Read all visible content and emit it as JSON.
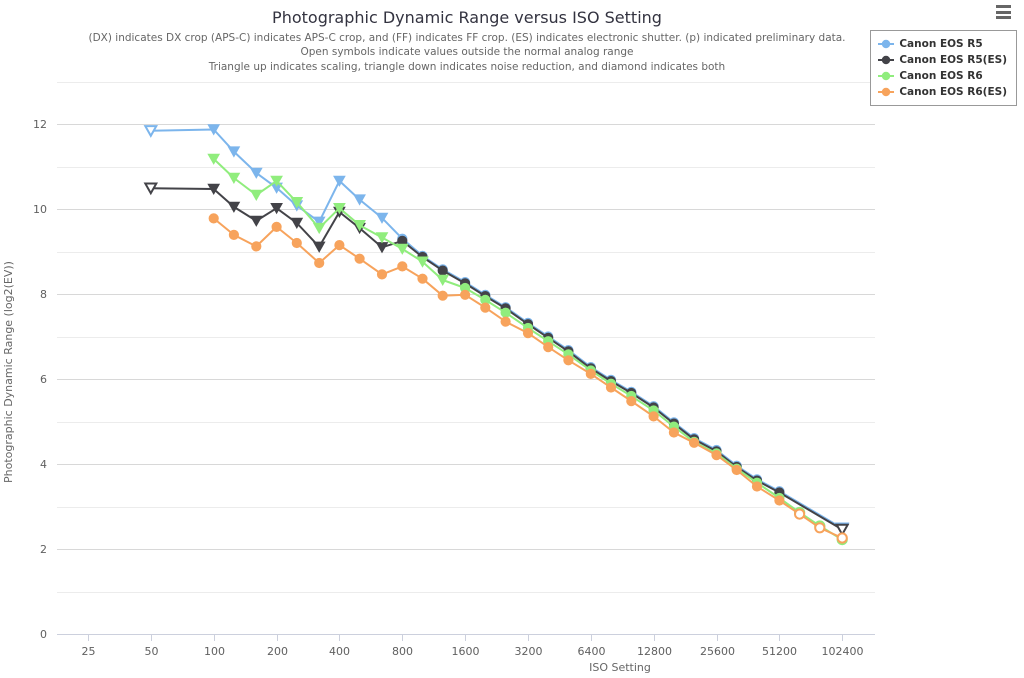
{
  "header": {
    "title": "Photographic Dynamic Range versus ISO Setting",
    "subtitle_lines": [
      "(DX) indicates DX crop (APS-C) indicates APS-C crop, and (FF) indicates FF crop. (ES) indicates electronic shutter. (p) indicated preliminary data.",
      "Open symbols indicate values outside the normal analog range",
      "Triangle up indicates scaling, triangle down indicates noise reduction, and diamond indicates both"
    ]
  },
  "menu": {
    "icon": "hamburger-menu-icon"
  },
  "legend": {
    "position": "top-right",
    "items": [
      {
        "label": "Canon EOS R5",
        "color": "#7cb5ec"
      },
      {
        "label": "Canon EOS R5(ES)",
        "color": "#434348"
      },
      {
        "label": "Canon EOS R6",
        "color": "#90ed7d"
      },
      {
        "label": "Canon EOS R6(ES)",
        "color": "#f7a35c"
      }
    ]
  },
  "axes": {
    "x": {
      "title": "ISO Setting",
      "type": "log2",
      "ticks": [
        25,
        50,
        100,
        200,
        400,
        800,
        1600,
        3200,
        6400,
        12800,
        25600,
        51200,
        102400
      ]
    },
    "y": {
      "title": "Photographic Dynamic Range (log2(EV))",
      "min": 0,
      "max": 13,
      "labeled_ticks": [
        0,
        2,
        4,
        6,
        8,
        10,
        12
      ],
      "minor_grid_step": 1
    }
  },
  "chart_data": {
    "type": "line",
    "title": "Photographic Dynamic Range versus ISO Setting",
    "xlabel": "ISO Setting",
    "ylabel": "Photographic Dynamic Range (log2(EV))",
    "x_scale": "log2",
    "xlim": [
      17.8,
      145000
    ],
    "ylim": [
      0,
      13
    ],
    "grid": true,
    "legend_position": "top-right",
    "point_format": [
      "iso",
      "pdr",
      "marker: t=triangle-down c=circle",
      "open: 1=open symbol 0=filled"
    ],
    "series": [
      {
        "name": "Canon EOS R5",
        "color": "#7cb5ec",
        "points": [
          [
            50,
            11.84,
            "t",
            1
          ],
          [
            100,
            11.87,
            "t",
            0
          ],
          [
            125,
            11.35,
            "t",
            0
          ],
          [
            160,
            10.85,
            "t",
            0
          ],
          [
            200,
            10.5,
            "t",
            0
          ],
          [
            250,
            10.08,
            "t",
            0
          ],
          [
            320,
            9.7,
            "t",
            0
          ],
          [
            400,
            10.66,
            "t",
            0
          ],
          [
            500,
            10.22,
            "t",
            0
          ],
          [
            640,
            9.79,
            "t",
            0
          ],
          [
            800,
            9.3,
            "c",
            0
          ],
          [
            1000,
            8.9,
            "c",
            0
          ],
          [
            1250,
            8.58,
            "c",
            0
          ],
          [
            1600,
            8.28,
            "c",
            0
          ],
          [
            2000,
            7.98,
            "c",
            0
          ],
          [
            2500,
            7.69,
            "c",
            0
          ],
          [
            3200,
            7.32,
            "c",
            0
          ],
          [
            4000,
            7.0,
            "c",
            0
          ],
          [
            5000,
            6.68,
            "c",
            0
          ],
          [
            6400,
            6.28,
            "c",
            0
          ],
          [
            8000,
            5.98,
            "c",
            0
          ],
          [
            10000,
            5.7,
            "c",
            0
          ],
          [
            12800,
            5.36,
            "c",
            0
          ],
          [
            16000,
            4.98,
            "c",
            0
          ],
          [
            20000,
            4.61,
            "c",
            0
          ],
          [
            25600,
            4.33,
            "c",
            0
          ],
          [
            32000,
            3.96,
            "c",
            0
          ],
          [
            40000,
            3.64,
            "c",
            0
          ],
          [
            51200,
            3.36,
            "c",
            0
          ],
          [
            102400,
            2.49,
            "t",
            1
          ]
        ]
      },
      {
        "name": "Canon EOS R5(ES)",
        "color": "#434348",
        "points": [
          [
            50,
            10.49,
            "t",
            1
          ],
          [
            100,
            10.47,
            "t",
            0
          ],
          [
            125,
            10.05,
            "t",
            0
          ],
          [
            160,
            9.72,
            "t",
            0
          ],
          [
            200,
            10.02,
            "t",
            0
          ],
          [
            250,
            9.67,
            "t",
            0
          ],
          [
            320,
            9.11,
            "t",
            0
          ],
          [
            400,
            9.93,
            "t",
            0
          ],
          [
            500,
            9.55,
            "t",
            0
          ],
          [
            640,
            9.1,
            "t",
            0
          ],
          [
            800,
            9.25,
            "c",
            0
          ],
          [
            1000,
            8.87,
            "c",
            0
          ],
          [
            1250,
            8.55,
            "c",
            0
          ],
          [
            1600,
            8.25,
            "c",
            0
          ],
          [
            2000,
            7.95,
            "c",
            0
          ],
          [
            2500,
            7.66,
            "c",
            0
          ],
          [
            3200,
            7.29,
            "c",
            0
          ],
          [
            4000,
            6.97,
            "c",
            0
          ],
          [
            5000,
            6.65,
            "c",
            0
          ],
          [
            6400,
            6.25,
            "c",
            0
          ],
          [
            8000,
            5.95,
            "c",
            0
          ],
          [
            10000,
            5.67,
            "c",
            0
          ],
          [
            12800,
            5.33,
            "c",
            0
          ],
          [
            16000,
            4.95,
            "c",
            0
          ],
          [
            20000,
            4.58,
            "c",
            0
          ],
          [
            25600,
            4.3,
            "c",
            0
          ],
          [
            32000,
            3.93,
            "c",
            0
          ],
          [
            40000,
            3.61,
            "c",
            0
          ],
          [
            51200,
            3.33,
            "c",
            0
          ],
          [
            102400,
            2.46,
            "t",
            1
          ]
        ]
      },
      {
        "name": "Canon EOS R6",
        "color": "#90ed7d",
        "points": [
          [
            100,
            11.18,
            "t",
            0
          ],
          [
            125,
            10.73,
            "t",
            0
          ],
          [
            160,
            10.33,
            "t",
            0
          ],
          [
            200,
            10.66,
            "t",
            0
          ],
          [
            250,
            10.16,
            "t",
            0
          ],
          [
            320,
            9.55,
            "t",
            0
          ],
          [
            400,
            10.02,
            "t",
            0
          ],
          [
            500,
            9.62,
            "t",
            0
          ],
          [
            640,
            9.33,
            "t",
            0
          ],
          [
            800,
            9.06,
            "t",
            0
          ],
          [
            1000,
            8.76,
            "t",
            0
          ],
          [
            1250,
            8.33,
            "t",
            0
          ],
          [
            1600,
            8.14,
            "c",
            0
          ],
          [
            2000,
            7.86,
            "c",
            0
          ],
          [
            2500,
            7.56,
            "c",
            0
          ],
          [
            3200,
            7.2,
            "c",
            0
          ],
          [
            4000,
            6.89,
            "c",
            0
          ],
          [
            5000,
            6.58,
            "c",
            0
          ],
          [
            6400,
            6.2,
            "c",
            0
          ],
          [
            8000,
            5.89,
            "c",
            0
          ],
          [
            10000,
            5.6,
            "c",
            0
          ],
          [
            12800,
            5.26,
            "c",
            0
          ],
          [
            16000,
            4.88,
            "c",
            0
          ],
          [
            20000,
            4.52,
            "c",
            0
          ],
          [
            25600,
            4.25,
            "c",
            0
          ],
          [
            32000,
            3.89,
            "c",
            0
          ],
          [
            40000,
            3.56,
            "c",
            0
          ],
          [
            51200,
            3.2,
            "c",
            0
          ],
          [
            64000,
            2.86,
            "c",
            1
          ],
          [
            80000,
            2.54,
            "c",
            1
          ],
          [
            102400,
            2.22,
            "c",
            1
          ]
        ]
      },
      {
        "name": "Canon EOS R6(ES)",
        "color": "#f7a35c",
        "points": [
          [
            100,
            9.78,
            "c",
            0
          ],
          [
            125,
            9.39,
            "c",
            0
          ],
          [
            160,
            9.12,
            "c",
            0
          ],
          [
            200,
            9.58,
            "c",
            0
          ],
          [
            250,
            9.2,
            "c",
            0
          ],
          [
            320,
            8.73,
            "c",
            0
          ],
          [
            400,
            9.15,
            "c",
            0
          ],
          [
            500,
            8.83,
            "c",
            0
          ],
          [
            640,
            8.46,
            "c",
            0
          ],
          [
            800,
            8.65,
            "c",
            0
          ],
          [
            1000,
            8.36,
            "c",
            0
          ],
          [
            1250,
            7.96,
            "c",
            0
          ],
          [
            1600,
            7.98,
            "c",
            0
          ],
          [
            2000,
            7.68,
            "c",
            0
          ],
          [
            2500,
            7.35,
            "c",
            0
          ],
          [
            3200,
            7.08,
            "c",
            0
          ],
          [
            4000,
            6.75,
            "c",
            0
          ],
          [
            5000,
            6.44,
            "c",
            0
          ],
          [
            6400,
            6.12,
            "c",
            0
          ],
          [
            8000,
            5.8,
            "c",
            0
          ],
          [
            10000,
            5.48,
            "c",
            0
          ],
          [
            12800,
            5.12,
            "c",
            0
          ],
          [
            16000,
            4.74,
            "c",
            0
          ],
          [
            20000,
            4.5,
            "c",
            0
          ],
          [
            25600,
            4.21,
            "c",
            0
          ],
          [
            32000,
            3.86,
            "c",
            0
          ],
          [
            40000,
            3.47,
            "c",
            0
          ],
          [
            51200,
            3.14,
            "c",
            0
          ],
          [
            64000,
            2.82,
            "c",
            1
          ],
          [
            80000,
            2.5,
            "c",
            1
          ],
          [
            102400,
            2.26,
            "c",
            1
          ]
        ]
      }
    ],
    "colors": {
      "r5": "#7cb5ec",
      "r5_es": "#434348",
      "r6": "#90ed7d",
      "r6_es": "#f7a35c",
      "major_grid": "#d8d8d8",
      "minor_grid": "#ececec",
      "axis_line": "#ccd0dd",
      "axis_label": "#606060",
      "subtitle": "#666666",
      "title": "#333340"
    }
  }
}
